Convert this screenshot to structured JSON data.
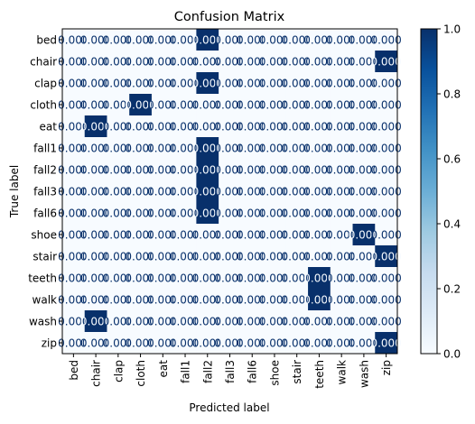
{
  "chart_data": {
    "type": "heatmap",
    "title": "Confusion Matrix",
    "xlabel": "Predicted label",
    "ylabel": "True label",
    "labels": [
      "bed",
      "chair",
      "clap",
      "cloth",
      "eat",
      "fall1",
      "fall2",
      "fall3",
      "fall6",
      "shoe",
      "stair",
      "teeth",
      "walk",
      "wash",
      "zip"
    ],
    "matrix": [
      [
        0,
        0,
        0,
        0,
        0,
        0,
        1,
        0,
        0,
        0,
        0,
        0,
        0,
        0,
        0
      ],
      [
        0,
        0,
        0,
        0,
        0,
        0,
        0,
        0,
        0,
        0,
        0,
        0,
        0,
        0,
        1
      ],
      [
        0,
        0,
        0,
        0,
        0,
        0,
        1,
        0,
        0,
        0,
        0,
        0,
        0,
        0,
        0
      ],
      [
        0,
        0,
        0,
        1,
        0,
        0,
        0,
        0,
        0,
        0,
        0,
        0,
        0,
        0,
        0
      ],
      [
        0,
        1,
        0,
        0,
        0,
        0,
        0,
        0,
        0,
        0,
        0,
        0,
        0,
        0,
        0
      ],
      [
        0,
        0,
        0,
        0,
        0,
        0,
        1,
        0,
        0,
        0,
        0,
        0,
        0,
        0,
        0
      ],
      [
        0,
        0,
        0,
        0,
        0,
        0,
        1,
        0,
        0,
        0,
        0,
        0,
        0,
        0,
        0
      ],
      [
        0,
        0,
        0,
        0,
        0,
        0,
        1,
        0,
        0,
        0,
        0,
        0,
        0,
        0,
        0
      ],
      [
        0,
        0,
        0,
        0,
        0,
        0,
        1,
        0,
        0,
        0,
        0,
        0,
        0,
        0,
        0
      ],
      [
        0,
        0,
        0,
        0,
        0,
        0,
        0,
        0,
        0,
        0,
        0,
        0,
        0,
        1,
        0
      ],
      [
        0,
        0,
        0,
        0,
        0,
        0,
        0,
        0,
        0,
        0,
        0,
        0,
        0,
        0,
        1
      ],
      [
        0,
        0,
        0,
        0,
        0,
        0,
        0,
        0,
        0,
        0,
        0,
        1,
        0,
        0,
        0
      ],
      [
        0,
        0,
        0,
        0,
        0,
        0,
        0,
        0,
        0,
        0,
        0,
        1,
        0,
        0,
        0
      ],
      [
        0,
        1,
        0,
        0,
        0,
        0,
        0,
        0,
        0,
        0,
        0,
        0,
        0,
        0,
        0
      ],
      [
        0,
        0,
        0,
        0,
        0,
        0,
        0,
        0,
        0,
        0,
        0,
        0,
        0,
        0,
        1
      ]
    ],
    "cell_text": "0.000",
    "colorbar": {
      "min": 0.0,
      "max": 1.0,
      "ticks": [
        "0.0",
        "0.2",
        "0.4",
        "0.6",
        "0.8",
        "1.0"
      ],
      "colormap": "Blues",
      "low_color": "#f7fbff",
      "high_color": "#08306b"
    },
    "text_color_on_light": "#08306b",
    "text_color_on_dark": "#f7fbff"
  }
}
